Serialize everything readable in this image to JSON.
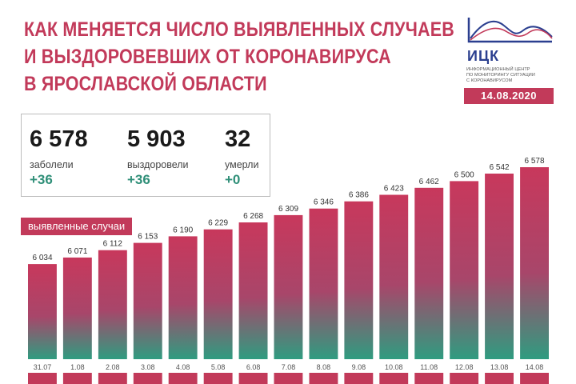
{
  "header": {
    "title_lines": [
      "КАК МЕНЯЕТСЯ ЧИСЛО ВЫЯВЛЕННЫХ СЛУЧАЕВ",
      "И ВЫЗДОРОВЕВШИХ ОТ КОРОНАВИРУСА",
      "В ЯРОСЛАВСКОЙ ОБЛАСТИ"
    ]
  },
  "logo": {
    "name": "ИЦК",
    "caption_lines": [
      "ИНФОРМАЦИОННЫЙ ЦЕНТР",
      "ПО МОНИТОРИНГУ СИТУАЦИИ",
      "С КОРОНАВИРУСОМ"
    ]
  },
  "date": "14.08.2020",
  "stats": {
    "cases": {
      "value": "6 578",
      "label": "заболели",
      "delta": "+36"
    },
    "recovered": {
      "value": "5 903",
      "label": "выздоровели",
      "delta": "+36"
    },
    "deaths": {
      "value": "32",
      "label": "умерли",
      "delta": "+0"
    }
  },
  "colors": {
    "accent": "#c23a5a",
    "bar_top": "#c8385c",
    "bar_bottom": "#2f9c80",
    "delta_green": "#2f8f78",
    "logo_blue": "#2b3f8f"
  },
  "chart_data": {
    "type": "bar",
    "legend": "выявленные случаи",
    "categories": [
      "31.07",
      "1.08",
      "2.08",
      "3.08",
      "4.08",
      "5.08",
      "6.08",
      "7.08",
      "8.08",
      "9.08",
      "10.08",
      "11.08",
      "12.08",
      "13.08",
      "14.08"
    ],
    "values": [
      6034,
      6071,
      6112,
      6153,
      6190,
      6229,
      6268,
      6309,
      6346,
      6386,
      6423,
      6462,
      6500,
      6542,
      6578
    ],
    "value_labels": [
      "6 034",
      "6 071",
      "6 112",
      "6 153",
      "6 190",
      "6 229",
      "6 268",
      "6 309",
      "6 346",
      "6 386",
      "6 423",
      "6 462",
      "6 500",
      "6 542",
      "6 578"
    ],
    "ylim": [
      5500,
      6578
    ],
    "grid": false
  }
}
